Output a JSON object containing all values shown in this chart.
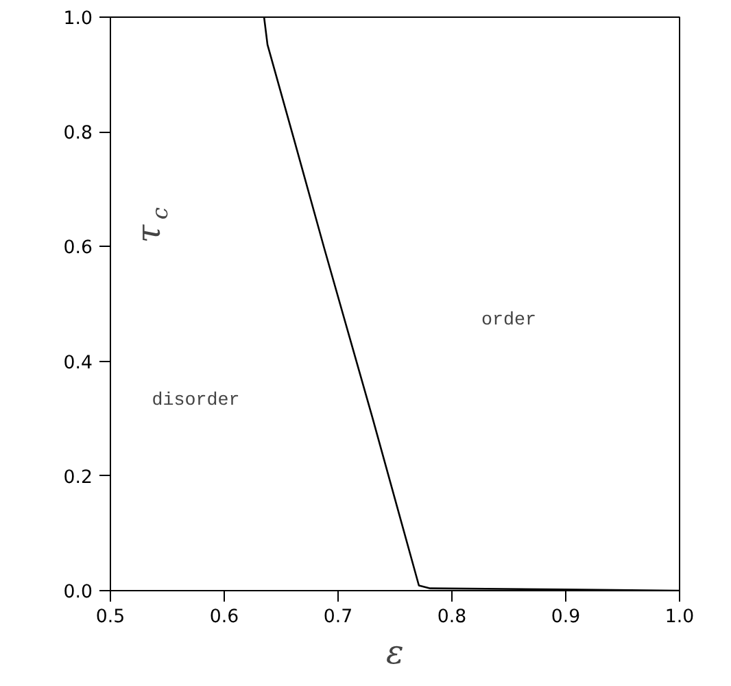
{
  "chart_data": {
    "type": "line",
    "xlabel": "ε",
    "ylabel": "τ$_{c}$",
    "x": [
      0.635,
      0.638,
      0.661,
      0.688,
      0.73,
      0.771,
      0.781,
      0.9,
      1.0
    ],
    "series": [
      {
        "color": "#000000",
        "values": [
          1.0,
          0.952,
          0.789,
          0.596,
          0.303,
          0.009,
          0.004,
          0.002,
          0.0
        ]
      }
    ],
    "xlim": [
      0.5,
      1.0
    ],
    "ylim": [
      0.0,
      1.0
    ],
    "xticks": [
      {
        "value": 0.5,
        "label": "0.5"
      },
      {
        "value": 0.6,
        "label": "0.6"
      },
      {
        "value": 0.7,
        "label": "0.7"
      },
      {
        "value": 0.8,
        "label": "0.8"
      },
      {
        "value": 0.9,
        "label": "0.9"
      },
      {
        "value": 1.0,
        "label": "1.0"
      }
    ],
    "yticks": [
      {
        "value": 0.0,
        "label": "0.0"
      },
      {
        "value": 0.2,
        "label": "0.2"
      },
      {
        "value": 0.4,
        "label": "0.4"
      },
      {
        "value": 0.6,
        "label": "0.6"
      },
      {
        "value": 0.8,
        "label": "0.8"
      },
      {
        "value": 1.0,
        "label": "1.0"
      }
    ],
    "annotations": [
      "disorder",
      "order"
    ],
    "grid": false,
    "marker": "none",
    "line_style": "solid"
  }
}
